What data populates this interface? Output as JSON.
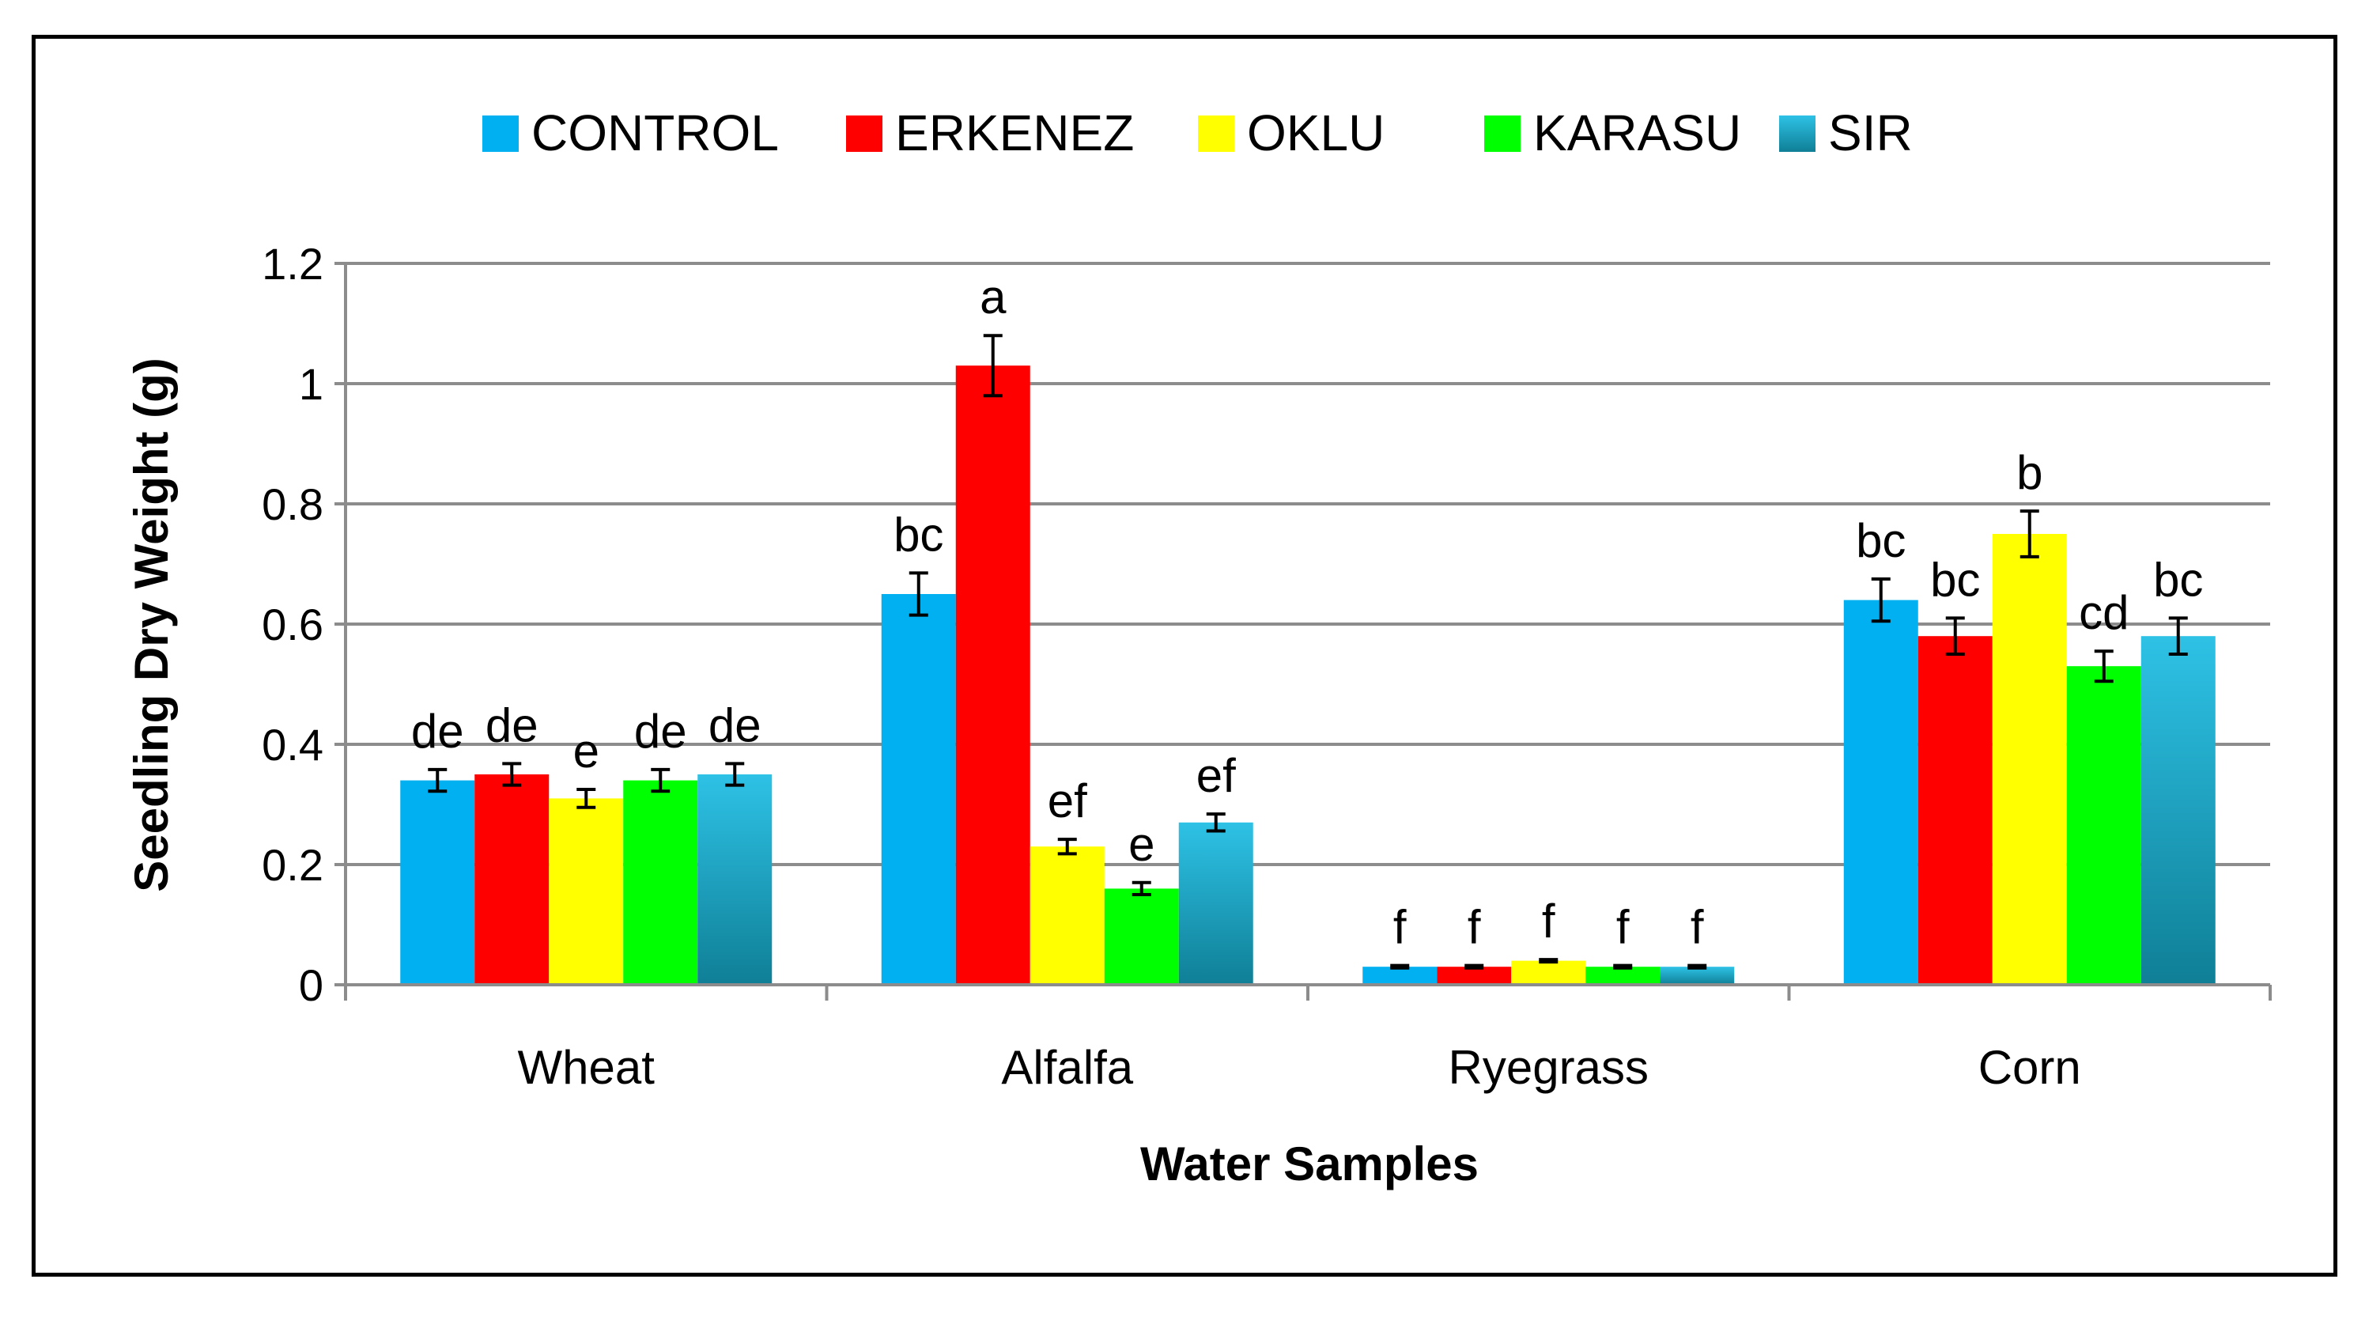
{
  "chart_data": {
    "type": "bar",
    "title": "",
    "xlabel": "Water Samples",
    "ylabel": "Seedling Dry Weight (g)",
    "ylim": [
      0,
      1.2
    ],
    "yticks": [
      "0",
      "0.2",
      "0.4",
      "0.6",
      "0.8",
      "1",
      "1.2"
    ],
    "grid": true,
    "legend_position": "top-center",
    "categories": [
      "Wheat",
      "Alfalfa",
      "Ryegrass",
      "Corn"
    ],
    "series": [
      {
        "name": "CONTROL",
        "color": "#00B0F0",
        "values": [
          0.34,
          0.65,
          0.03,
          0.64
        ],
        "errors": [
          0.018,
          0.035,
          0.002,
          0.035
        ],
        "labels": [
          "de",
          "bc",
          "f",
          "bc"
        ]
      },
      {
        "name": "ERKENEZ",
        "color": "#FF0000",
        "values": [
          0.35,
          1.03,
          0.03,
          0.58
        ],
        "errors": [
          0.018,
          0.05,
          0.002,
          0.03
        ],
        "labels": [
          "de",
          "a",
          "f",
          "bc"
        ]
      },
      {
        "name": "OKLU",
        "color": "#FFFF00",
        "values": [
          0.31,
          0.23,
          0.04,
          0.75
        ],
        "errors": [
          0.015,
          0.012,
          0.002,
          0.038
        ],
        "labels": [
          "e",
          "ef",
          "f",
          "b"
        ]
      },
      {
        "name": "KARASU",
        "color": "#00FF00",
        "values": [
          0.34,
          0.16,
          0.03,
          0.53
        ],
        "errors": [
          0.018,
          0.01,
          0.002,
          0.025
        ],
        "labels": [
          "de",
          "e",
          "f",
          "cd"
        ]
      },
      {
        "name": "SIR",
        "color": "#1AA9C9",
        "values": [
          0.35,
          0.27,
          0.03,
          0.58
        ],
        "errors": [
          0.018,
          0.014,
          0.002,
          0.03
        ],
        "labels": [
          "de",
          "ef",
          "f",
          "bc"
        ]
      }
    ]
  }
}
